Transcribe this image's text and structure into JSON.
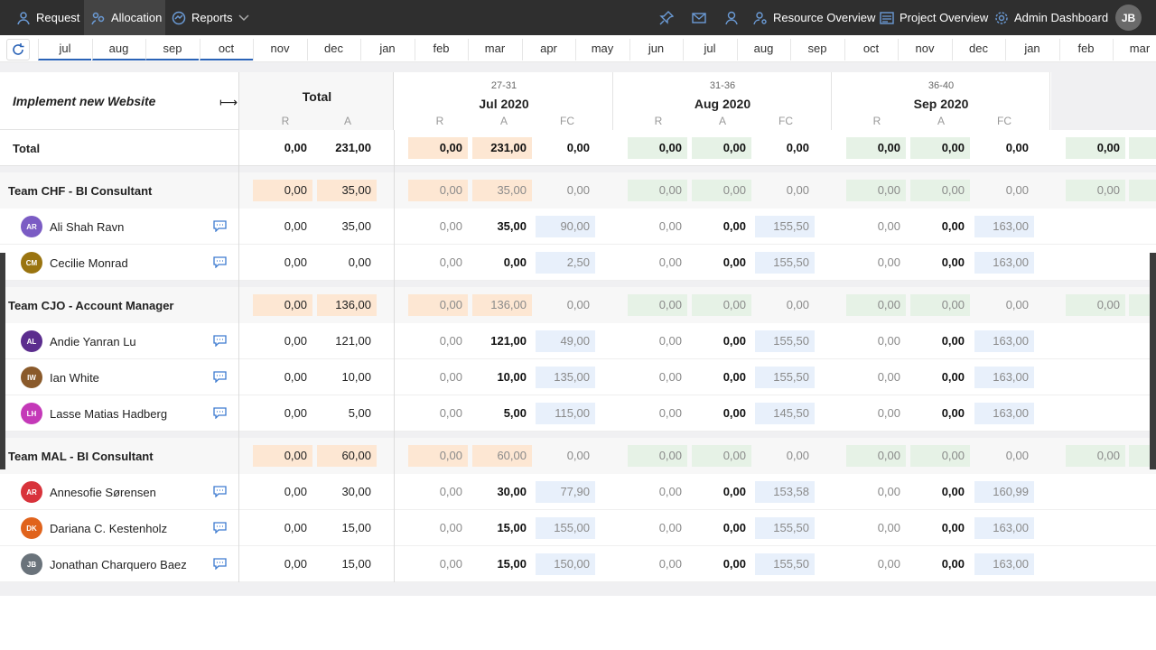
{
  "nav": {
    "left": [
      {
        "label": "Request",
        "icon": "request-icon"
      },
      {
        "label": "Allocation",
        "icon": "allocation-icon"
      },
      {
        "label": "Reports",
        "icon": "reports-icon"
      }
    ],
    "right": [
      {
        "label": "Resource Overview",
        "icon": "user-search-icon"
      },
      {
        "label": "Project Overview",
        "icon": "project-icon"
      },
      {
        "label": "Admin Dashboard",
        "icon": "gear-icon"
      }
    ],
    "user_initials": "JB"
  },
  "months": [
    "jul",
    "aug",
    "sep",
    "oct",
    "nov",
    "dec",
    "jan",
    "feb",
    "mar",
    "apr",
    "may",
    "jun",
    "jul",
    "aug",
    "sep",
    "oct",
    "nov",
    "dec",
    "jan",
    "feb",
    "mar"
  ],
  "selected_months": [
    0,
    1,
    2,
    3
  ],
  "header": {
    "project": "Implement new Website",
    "total_label": "Total",
    "r": "R",
    "a": "A",
    "fc": "FC",
    "periods": [
      {
        "weeks": "27-31",
        "month": "Jul 2020"
      },
      {
        "weeks": "31-36",
        "month": "Aug 2020"
      },
      {
        "weeks": "36-40",
        "month": "Sep 2020"
      }
    ]
  },
  "total_row": {
    "label": "Total",
    "tr": "0,00",
    "ta": "231,00",
    "months": [
      {
        "r": "0,00",
        "a": "231,00",
        "fc": "0,00"
      },
      {
        "r": "0,00",
        "a": "0,00",
        "fc": "0,00"
      },
      {
        "r": "0,00",
        "a": "0,00",
        "fc": "0,00"
      }
    ],
    "extra_r": "0,00"
  },
  "teams": [
    {
      "name": "Team CHF - BI Consultant",
      "tr": "0,00",
      "ta": "35,00",
      "months": [
        {
          "r": "0,00",
          "a": "35,00",
          "fc": "0,00"
        },
        {
          "r": "0,00",
          "a": "0,00",
          "fc": "0,00"
        },
        {
          "r": "0,00",
          "a": "0,00",
          "fc": "0,00"
        }
      ],
      "extra_r": "0,00",
      "members": [
        {
          "initials": "AR",
          "name": "Ali Shah Ravn",
          "color": "#7b5cc4",
          "tr": "0,00",
          "ta": "35,00",
          "months": [
            {
              "r": "0,00",
              "a": "35,00",
              "fc": "90,00"
            },
            {
              "r": "0,00",
              "a": "0,00",
              "fc": "155,50"
            },
            {
              "r": "0,00",
              "a": "0,00",
              "fc": "163,00"
            }
          ]
        },
        {
          "initials": "CM",
          "name": "Cecilie Monrad",
          "color": "#9a7410",
          "tr": "0,00",
          "ta": "0,00",
          "months": [
            {
              "r": "0,00",
              "a": "0,00",
              "fc": "2,50"
            },
            {
              "r": "0,00",
              "a": "0,00",
              "fc": "155,50"
            },
            {
              "r": "0,00",
              "a": "0,00",
              "fc": "163,00"
            }
          ]
        }
      ]
    },
    {
      "name": "Team CJO - Account Manager",
      "tr": "0,00",
      "ta": "136,00",
      "months": [
        {
          "r": "0,00",
          "a": "136,00",
          "fc": "0,00"
        },
        {
          "r": "0,00",
          "a": "0,00",
          "fc": "0,00"
        },
        {
          "r": "0,00",
          "a": "0,00",
          "fc": "0,00"
        }
      ],
      "extra_r": "0,00",
      "members": [
        {
          "initials": "AL",
          "name": "Andie Yanran Lu",
          "color": "#5b2d8e",
          "tr": "0,00",
          "ta": "121,00",
          "months": [
            {
              "r": "0,00",
              "a": "121,00",
              "fc": "49,00"
            },
            {
              "r": "0,00",
              "a": "0,00",
              "fc": "155,50"
            },
            {
              "r": "0,00",
              "a": "0,00",
              "fc": "163,00"
            }
          ]
        },
        {
          "initials": "IW",
          "name": "Ian White",
          "color": "#8a5a2b",
          "tr": "0,00",
          "ta": "10,00",
          "months": [
            {
              "r": "0,00",
              "a": "10,00",
              "fc": "135,00"
            },
            {
              "r": "0,00",
              "a": "0,00",
              "fc": "155,50"
            },
            {
              "r": "0,00",
              "a": "0,00",
              "fc": "163,00"
            }
          ]
        },
        {
          "initials": "LH",
          "name": "Lasse Matias Hadberg",
          "color": "#c439b8",
          "tr": "0,00",
          "ta": "5,00",
          "months": [
            {
              "r": "0,00",
              "a": "5,00",
              "fc": "115,00"
            },
            {
              "r": "0,00",
              "a": "0,00",
              "fc": "145,50"
            },
            {
              "r": "0,00",
              "a": "0,00",
              "fc": "163,00"
            }
          ]
        }
      ]
    },
    {
      "name": "Team MAL - BI Consultant",
      "tr": "0,00",
      "ta": "60,00",
      "months": [
        {
          "r": "0,00",
          "a": "60,00",
          "fc": "0,00"
        },
        {
          "r": "0,00",
          "a": "0,00",
          "fc": "0,00"
        },
        {
          "r": "0,00",
          "a": "0,00",
          "fc": "0,00"
        }
      ],
      "extra_r": "0,00",
      "members": [
        {
          "initials": "AR",
          "name": "Annesofie Sørensen",
          "color": "#d8333b",
          "tr": "0,00",
          "ta": "30,00",
          "months": [
            {
              "r": "0,00",
              "a": "30,00",
              "fc": "77,90"
            },
            {
              "r": "0,00",
              "a": "0,00",
              "fc": "153,58"
            },
            {
              "r": "0,00",
              "a": "0,00",
              "fc": "160,99"
            }
          ]
        },
        {
          "initials": "DK",
          "name": "Dariana C. Kestenholz",
          "color": "#e0631c",
          "tr": "0,00",
          "ta": "15,00",
          "months": [
            {
              "r": "0,00",
              "a": "15,00",
              "fc": "155,00"
            },
            {
              "r": "0,00",
              "a": "0,00",
              "fc": "155,50"
            },
            {
              "r": "0,00",
              "a": "0,00",
              "fc": "163,00"
            }
          ]
        },
        {
          "initials": "JB",
          "name": "Jonathan Charquero Baez",
          "color": "#6a737b",
          "tr": "0,00",
          "ta": "15,00",
          "months": [
            {
              "r": "0,00",
              "a": "15,00",
              "fc": "150,00"
            },
            {
              "r": "0,00",
              "a": "0,00",
              "fc": "155,50"
            },
            {
              "r": "0,00",
              "a": "0,00",
              "fc": "163,00"
            }
          ]
        }
      ]
    }
  ]
}
